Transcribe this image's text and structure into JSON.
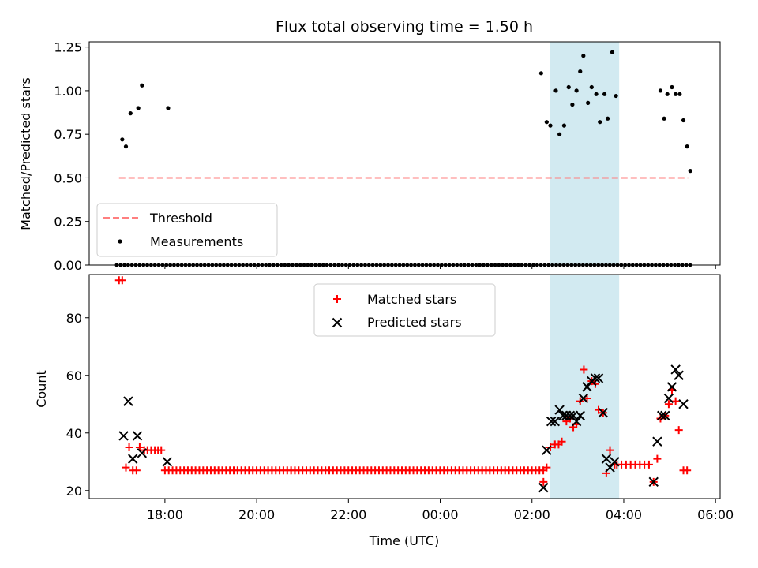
{
  "chart_data": {
    "type": "scatter",
    "title": "Flux total observing time = 1.50 h",
    "x_label": "Time (UTC)",
    "x_range_hours": [
      16.35,
      30.1
    ],
    "x_ticks": [
      {
        "h": 18,
        "label": "18:00"
      },
      {
        "h": 20,
        "label": "20:00"
      },
      {
        "h": 22,
        "label": "22:00"
      },
      {
        "h": 24,
        "label": "00:00"
      },
      {
        "h": 26,
        "label": "02:00"
      },
      {
        "h": 28,
        "label": "04:00"
      },
      {
        "h": 30,
        "label": "06:00"
      }
    ],
    "shaded_interval_hours": [
      26.4,
      27.9
    ],
    "shade_color": "#add8e6",
    "panels": [
      {
        "ylabel": "Matched/Predicted stars",
        "ylim": [
          0,
          1.28
        ],
        "yticks": [
          {
            "v": 0,
            "label": "0.00"
          },
          {
            "v": 0.25,
            "label": "0.25"
          },
          {
            "v": 0.5,
            "label": "0.50"
          },
          {
            "v": 0.75,
            "label": "0.75"
          },
          {
            "v": 1.0,
            "label": "1.00"
          },
          {
            "v": 1.25,
            "label": "1.25"
          }
        ],
        "threshold": {
          "label": "Threshold",
          "value": 0.5,
          "x_start": 17.0,
          "x_end": 29.4,
          "color": "#ff7f7f"
        },
        "measurements": {
          "label": "Measurements",
          "color": "#000000",
          "zero_range": [
            16.95,
            29.5
          ],
          "zero_step": 0.0833,
          "points": [
            [
              17.07,
              0.72
            ],
            [
              17.15,
              0.68
            ],
            [
              17.25,
              0.87
            ],
            [
              17.42,
              0.9
            ],
            [
              17.5,
              1.03
            ],
            [
              18.07,
              0.9
            ],
            [
              26.2,
              1.1
            ],
            [
              26.32,
              0.82
            ],
            [
              26.4,
              0.8
            ],
            [
              26.52,
              1.0
            ],
            [
              26.6,
              0.75
            ],
            [
              26.7,
              0.8
            ],
            [
              26.8,
              1.02
            ],
            [
              26.88,
              0.92
            ],
            [
              26.97,
              1.0
            ],
            [
              27.05,
              1.11
            ],
            [
              27.12,
              1.2
            ],
            [
              27.22,
              0.93
            ],
            [
              27.3,
              1.02
            ],
            [
              27.4,
              0.98
            ],
            [
              27.48,
              0.82
            ],
            [
              27.58,
              0.98
            ],
            [
              27.65,
              0.84
            ],
            [
              27.75,
              1.22
            ],
            [
              27.83,
              0.97
            ],
            [
              28.8,
              1.0
            ],
            [
              28.88,
              0.84
            ],
            [
              28.95,
              0.98
            ],
            [
              29.05,
              1.02
            ],
            [
              29.13,
              0.98
            ],
            [
              29.22,
              0.98
            ],
            [
              29.3,
              0.83
            ],
            [
              29.38,
              0.68
            ],
            [
              29.45,
              0.54
            ]
          ]
        }
      },
      {
        "ylabel": "Count",
        "ylim": [
          17.2,
          95.0
        ],
        "yticks": [
          {
            "v": 20,
            "label": "20"
          },
          {
            "v": 40,
            "label": "40"
          },
          {
            "v": 60,
            "label": "60"
          },
          {
            "v": 80,
            "label": "80"
          }
        ],
        "matched": {
          "label": "Matched stars",
          "color": "#ff0000",
          "baseline_value": 27,
          "baseline_range": [
            18.0,
            26.3
          ],
          "baseline_step": 0.0833,
          "points": [
            [
              17.0,
              93
            ],
            [
              17.07,
              93
            ],
            [
              17.15,
              28
            ],
            [
              17.22,
              35
            ],
            [
              17.3,
              27
            ],
            [
              17.38,
              27
            ],
            [
              17.45,
              35
            ],
            [
              17.55,
              34
            ],
            [
              17.62,
              34
            ],
            [
              17.7,
              34
            ],
            [
              17.78,
              34
            ],
            [
              17.85,
              34
            ],
            [
              17.92,
              34
            ],
            [
              26.25,
              23
            ],
            [
              26.32,
              28
            ],
            [
              26.4,
              35
            ],
            [
              26.5,
              36
            ],
            [
              26.58,
              36
            ],
            [
              26.65,
              37
            ],
            [
              26.75,
              44
            ],
            [
              26.83,
              45
            ],
            [
              26.9,
              42
            ],
            [
              26.97,
              43
            ],
            [
              27.05,
              51
            ],
            [
              27.13,
              62
            ],
            [
              27.2,
              52
            ],
            [
              27.3,
              58
            ],
            [
              27.38,
              57
            ],
            [
              27.45,
              48
            ],
            [
              27.55,
              47
            ],
            [
              27.62,
              26
            ],
            [
              27.7,
              34
            ],
            [
              27.8,
              29
            ],
            [
              27.85,
              29
            ],
            [
              27.95,
              29
            ],
            [
              28.05,
              29
            ],
            [
              28.15,
              29
            ],
            [
              28.25,
              29
            ],
            [
              28.35,
              29
            ],
            [
              28.45,
              29
            ],
            [
              28.55,
              29
            ],
            [
              28.65,
              23
            ],
            [
              28.73,
              31
            ],
            [
              28.8,
              45
            ],
            [
              28.9,
              46
            ],
            [
              28.98,
              50
            ],
            [
              29.05,
              55
            ],
            [
              29.13,
              51
            ],
            [
              29.2,
              41
            ],
            [
              29.3,
              27
            ],
            [
              29.38,
              27
            ]
          ]
        },
        "predicted": {
          "label": "Predicted stars",
          "color": "#000000",
          "points": [
            [
              17.1,
              39
            ],
            [
              17.2,
              51
            ],
            [
              17.3,
              31
            ],
            [
              17.4,
              39
            ],
            [
              17.5,
              33
            ],
            [
              18.05,
              30
            ],
            [
              26.25,
              21
            ],
            [
              26.32,
              34
            ],
            [
              26.42,
              44
            ],
            [
              26.5,
              44
            ],
            [
              26.6,
              48
            ],
            [
              26.68,
              46
            ],
            [
              26.75,
              46
            ],
            [
              26.83,
              46
            ],
            [
              26.9,
              46
            ],
            [
              26.97,
              44
            ],
            [
              27.05,
              46
            ],
            [
              27.12,
              52
            ],
            [
              27.2,
              56
            ],
            [
              27.3,
              58
            ],
            [
              27.38,
              59
            ],
            [
              27.45,
              59
            ],
            [
              27.55,
              47
            ],
            [
              27.62,
              31
            ],
            [
              27.7,
              28
            ],
            [
              27.8,
              30
            ],
            [
              28.65,
              23
            ],
            [
              28.73,
              37
            ],
            [
              28.83,
              46
            ],
            [
              28.9,
              46
            ],
            [
              28.98,
              52
            ],
            [
              29.05,
              56
            ],
            [
              29.13,
              62
            ],
            [
              29.2,
              60
            ],
            [
              29.3,
              50
            ]
          ]
        }
      }
    ]
  }
}
